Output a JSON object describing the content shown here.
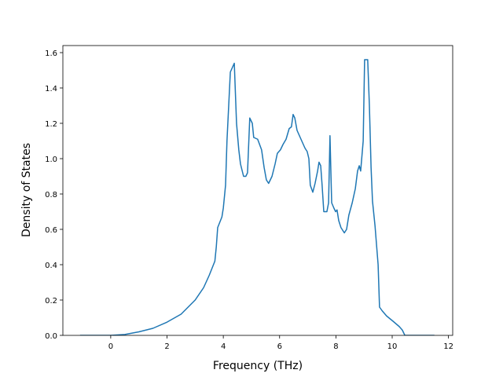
{
  "chart_data": {
    "type": "line",
    "xlabel": "Frequency (THz)",
    "ylabel": "Density of States",
    "color": "#1f77b4",
    "x": [
      -1.09,
      0,
      0.5,
      1,
      1.5,
      2,
      2.5,
      3,
      3.3,
      3.5,
      3.7,
      3.75,
      3.8,
      3.95,
      4.0,
      4.08,
      4.13,
      4.25,
      4.39,
      4.47,
      4.55,
      4.61,
      4.72,
      4.8,
      4.86,
      4.94,
      5.03,
      5.08,
      5.22,
      5.36,
      5.45,
      5.53,
      5.61,
      5.73,
      5.84,
      5.92,
      6.03,
      6.12,
      6.23,
      6.34,
      6.42,
      6.48,
      6.54,
      6.62,
      6.76,
      6.9,
      6.98,
      7.04,
      7.09,
      7.18,
      7.26,
      7.35,
      7.4,
      7.46,
      7.51,
      7.57,
      7.68,
      7.74,
      7.79,
      7.85,
      7.93,
      7.99,
      8.04,
      8.1,
      8.18,
      8.3,
      8.38,
      8.46,
      8.58,
      8.69,
      8.77,
      8.83,
      8.88,
      8.97,
      9.02,
      9.13,
      9.19,
      9.25,
      9.3,
      9.39,
      9.5,
      9.55,
      9.64,
      9.8,
      10.03,
      10.25,
      10.36,
      10.45,
      11.5
    ],
    "values": [
      0,
      0,
      0.005,
      0.02,
      0.04,
      0.075,
      0.12,
      0.2,
      0.27,
      0.34,
      0.42,
      0.5,
      0.61,
      0.67,
      0.72,
      0.85,
      1.1,
      1.49,
      1.54,
      1.2,
      1.05,
      0.97,
      0.9,
      0.9,
      0.92,
      1.23,
      1.2,
      1.12,
      1.11,
      1.05,
      0.95,
      0.88,
      0.86,
      0.9,
      0.97,
      1.03,
      1.05,
      1.08,
      1.11,
      1.17,
      1.18,
      1.25,
      1.23,
      1.16,
      1.11,
      1.06,
      1.04,
      1.0,
      0.85,
      0.81,
      0.86,
      0.93,
      0.98,
      0.96,
      0.85,
      0.7,
      0.7,
      0.75,
      1.13,
      0.75,
      0.72,
      0.7,
      0.71,
      0.65,
      0.61,
      0.58,
      0.6,
      0.68,
      0.75,
      0.83,
      0.93,
      0.96,
      0.93,
      1.1,
      1.56,
      1.56,
      1.3,
      0.95,
      0.76,
      0.62,
      0.4,
      0.16,
      0.14,
      0.11,
      0.08,
      0.05,
      0.03,
      0,
      0
    ],
    "xlim": [
      -1.7,
      12.15
    ],
    "ylim": [
      0,
      1.64
    ],
    "xticks": [
      0,
      2,
      4,
      6,
      8,
      10,
      12
    ],
    "yticks": [
      {
        "value": 0,
        "label": "0.0"
      },
      {
        "value": 0.2,
        "label": "0.2"
      },
      {
        "value": 0.4,
        "label": "0.4"
      },
      {
        "value": 0.6,
        "label": "0.6"
      },
      {
        "value": 0.8,
        "label": "0.8"
      },
      {
        "value": 1.0,
        "label": "1.0"
      },
      {
        "value": 1.2,
        "label": "1.2"
      },
      {
        "value": 1.4,
        "label": "1.4"
      },
      {
        "value": 1.6,
        "label": "1.6"
      }
    ]
  }
}
